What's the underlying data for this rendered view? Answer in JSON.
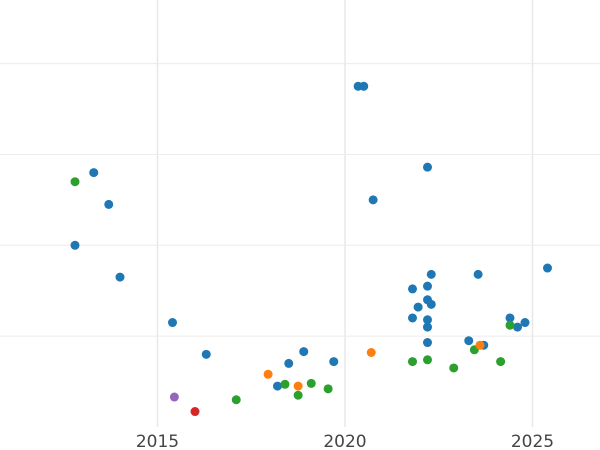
{
  "chart_data": {
    "type": "scatter",
    "title": "",
    "xlabel": "",
    "ylabel": "",
    "grid": true,
    "legend": "none",
    "xlim": [
      2010.8,
      2026.8
    ],
    "ylim": [
      0,
      4.7
    ],
    "x_ticks": [
      {
        "value": 2015,
        "label": "2015"
      },
      {
        "value": 2020,
        "label": "2020"
      },
      {
        "value": 2025,
        "label": "2025"
      }
    ],
    "y_gridlines": [
      1,
      2,
      3,
      4
    ],
    "colors": {
      "blue": "#1f77b4",
      "orange": "#ff7f0e",
      "green": "#2ca02c",
      "red": "#d62728",
      "purple": "#9467bd"
    },
    "points": [
      {
        "x": 2012.8,
        "y": 2.0,
        "c": "blue"
      },
      {
        "x": 2013.3,
        "y": 2.8,
        "c": "blue"
      },
      {
        "x": 2013.7,
        "y": 2.45,
        "c": "blue"
      },
      {
        "x": 2014.0,
        "y": 1.65,
        "c": "blue"
      },
      {
        "x": 2015.4,
        "y": 1.15,
        "c": "blue"
      },
      {
        "x": 2016.3,
        "y": 0.8,
        "c": "blue"
      },
      {
        "x": 2018.2,
        "y": 0.45,
        "c": "blue"
      },
      {
        "x": 2018.5,
        "y": 0.7,
        "c": "blue"
      },
      {
        "x": 2018.9,
        "y": 0.83,
        "c": "blue"
      },
      {
        "x": 2019.7,
        "y": 0.72,
        "c": "blue"
      },
      {
        "x": 2020.35,
        "y": 3.75,
        "c": "blue"
      },
      {
        "x": 2020.5,
        "y": 3.75,
        "c": "blue"
      },
      {
        "x": 2020.75,
        "y": 2.5,
        "c": "blue"
      },
      {
        "x": 2021.8,
        "y": 1.52,
        "c": "blue"
      },
      {
        "x": 2021.8,
        "y": 1.2,
        "c": "blue"
      },
      {
        "x": 2021.95,
        "y": 1.32,
        "c": "blue"
      },
      {
        "x": 2022.2,
        "y": 2.86,
        "c": "blue"
      },
      {
        "x": 2022.2,
        "y": 1.55,
        "c": "blue"
      },
      {
        "x": 2022.2,
        "y": 1.4,
        "c": "blue"
      },
      {
        "x": 2022.2,
        "y": 1.18,
        "c": "blue"
      },
      {
        "x": 2022.2,
        "y": 1.1,
        "c": "blue"
      },
      {
        "x": 2022.2,
        "y": 0.93,
        "c": "blue"
      },
      {
        "x": 2022.3,
        "y": 1.68,
        "c": "blue"
      },
      {
        "x": 2022.3,
        "y": 1.35,
        "c": "blue"
      },
      {
        "x": 2023.3,
        "y": 0.95,
        "c": "blue"
      },
      {
        "x": 2023.55,
        "y": 1.68,
        "c": "blue"
      },
      {
        "x": 2023.7,
        "y": 0.9,
        "c": "blue"
      },
      {
        "x": 2024.4,
        "y": 1.2,
        "c": "blue"
      },
      {
        "x": 2024.6,
        "y": 1.1,
        "c": "blue"
      },
      {
        "x": 2024.8,
        "y": 1.15,
        "c": "blue"
      },
      {
        "x": 2025.4,
        "y": 1.75,
        "c": "blue"
      },
      {
        "x": 2012.8,
        "y": 2.7,
        "c": "green"
      },
      {
        "x": 2017.1,
        "y": 0.3,
        "c": "green"
      },
      {
        "x": 2018.4,
        "y": 0.47,
        "c": "green"
      },
      {
        "x": 2018.75,
        "y": 0.35,
        "c": "green"
      },
      {
        "x": 2019.1,
        "y": 0.48,
        "c": "green"
      },
      {
        "x": 2019.55,
        "y": 0.42,
        "c": "green"
      },
      {
        "x": 2021.8,
        "y": 0.72,
        "c": "green"
      },
      {
        "x": 2022.2,
        "y": 0.74,
        "c": "green"
      },
      {
        "x": 2022.9,
        "y": 0.65,
        "c": "green"
      },
      {
        "x": 2023.45,
        "y": 0.85,
        "c": "green"
      },
      {
        "x": 2024.15,
        "y": 0.72,
        "c": "green"
      },
      {
        "x": 2024.4,
        "y": 1.12,
        "c": "green"
      },
      {
        "x": 2017.95,
        "y": 0.58,
        "c": "orange"
      },
      {
        "x": 2018.75,
        "y": 0.45,
        "c": "orange"
      },
      {
        "x": 2020.7,
        "y": 0.82,
        "c": "orange"
      },
      {
        "x": 2023.6,
        "y": 0.9,
        "c": "orange"
      },
      {
        "x": 2016.0,
        "y": 0.17,
        "c": "red"
      },
      {
        "x": 2015.45,
        "y": 0.33,
        "c": "purple"
      }
    ]
  }
}
